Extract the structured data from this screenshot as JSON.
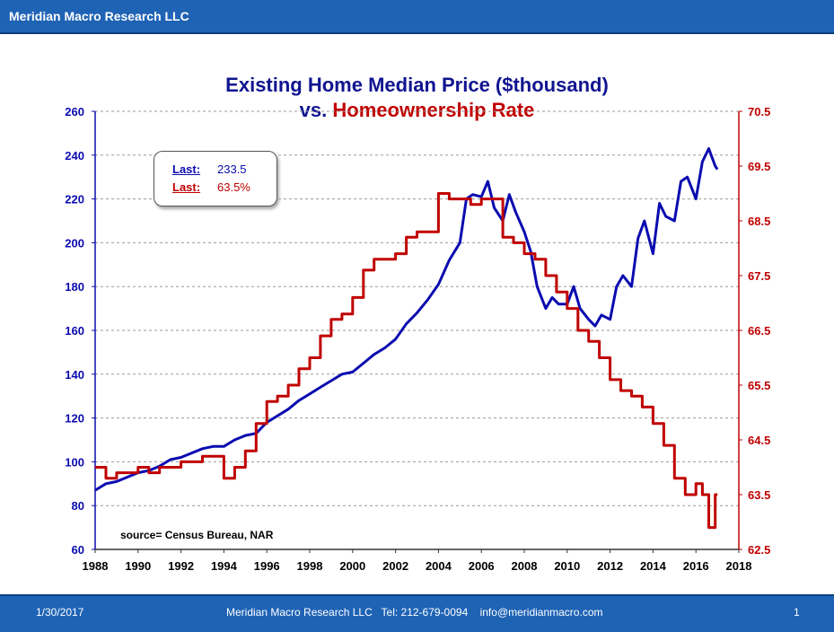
{
  "header": {
    "title": "Meridian Macro Research LLC"
  },
  "footer": {
    "date": "1/30/2017",
    "contact": "Meridian Macro Research LLC   Tel: 212-679-0094    info@meridianmacro.com",
    "page": "1"
  },
  "legend_box": {
    "row1": {
      "label": "Last:",
      "value": "233.5"
    },
    "row2": {
      "label": "Last:",
      "value": "63.5%"
    }
  },
  "source_note": "source= Census Bureau, NAR",
  "colors": {
    "price": "#0b0bb0",
    "rate": "#c00000",
    "brand": "#1f63b5"
  },
  "chart_data": {
    "type": "line",
    "title": "Existing Home Median Price ($thousand)",
    "subtitle_prefix": "vs.",
    "subtitle_series": "Homeownership Rate",
    "x_ticks": [
      "1988",
      "1990",
      "1992",
      "1994",
      "1996",
      "1998",
      "2000",
      "2002",
      "2004",
      "2006",
      "2008",
      "2010",
      "2012",
      "2014",
      "2016",
      "2018"
    ],
    "xlim": [
      1988,
      2018
    ],
    "y_left": {
      "lim": [
        60,
        260
      ],
      "ticks": [
        "60",
        "80",
        "100",
        "120",
        "140",
        "160",
        "180",
        "200",
        "220",
        "240",
        "260"
      ]
    },
    "y_right": {
      "lim": [
        62.5,
        70.5
      ],
      "ticks": [
        "62.5",
        "63.5",
        "64.5",
        "65.5",
        "66.5",
        "67.5",
        "68.5",
        "69.5",
        "70.5"
      ]
    },
    "grid": "horizontal-dashed",
    "series": [
      {
        "axis": "left",
        "x": [
          1988,
          1988.5,
          1989,
          1989.5,
          1990,
          1990.5,
          1991,
          1991.5,
          1992,
          1992.5,
          1993,
          1993.5,
          1994,
          1994.5,
          1995,
          1995.5,
          1996,
          1996.5,
          1997,
          1997.5,
          1998,
          1998.5,
          1999,
          1999.5,
          2000,
          2000.5,
          2001,
          2001.5,
          2002,
          2002.5,
          2003,
          2003.5,
          2004,
          2004.5,
          2005,
          2005.3,
          2005.6,
          2006,
          2006.3,
          2006.6,
          2007,
          2007.3,
          2007.6,
          2008,
          2008.3,
          2008.6,
          2009,
          2009.3,
          2009.6,
          2010,
          2010.3,
          2010.6,
          2011,
          2011.3,
          2011.6,
          2012,
          2012.3,
          2012.6,
          2013,
          2013.3,
          2013.6,
          2014,
          2014.3,
          2014.6,
          2015,
          2015.3,
          2015.6,
          2016,
          2016.3,
          2016.6,
          2016.9,
          2017
        ],
        "y": [
          87,
          90,
          91,
          93,
          95,
          96,
          98,
          101,
          102,
          104,
          106,
          107,
          107,
          110,
          112,
          113,
          118,
          121,
          124,
          128,
          131,
          134,
          137,
          140,
          141,
          145,
          149,
          152,
          156,
          163,
          168,
          174,
          181,
          192,
          200,
          220,
          222,
          221,
          228,
          216,
          210,
          222,
          214,
          205,
          196,
          180,
          170,
          175,
          172,
          172,
          180,
          170,
          165,
          162,
          167,
          165,
          180,
          185,
          180,
          202,
          210,
          195,
          218,
          212,
          210,
          228,
          230,
          220,
          237,
          243,
          235,
          233.5
        ]
      },
      {
        "axis": "right",
        "x": [
          1988,
          1988.5,
          1989,
          1989.5,
          1990,
          1990.5,
          1991,
          1991.5,
          1992,
          1992.5,
          1993,
          1993.5,
          1994,
          1994.5,
          1995,
          1995.5,
          1996,
          1996.5,
          1997,
          1997.5,
          1998,
          1998.5,
          1999,
          1999.5,
          2000,
          2000.5,
          2001,
          2001.5,
          2002,
          2002.5,
          2003,
          2003.5,
          2004,
          2004.5,
          2005,
          2005.5,
          2006,
          2006.5,
          2007,
          2007.5,
          2008,
          2008.5,
          2009,
          2009.5,
          2010,
          2010.5,
          2011,
          2011.5,
          2012,
          2012.5,
          2013,
          2013.5,
          2014,
          2014.5,
          2015,
          2015.5,
          2016,
          2016.3,
          2016.6,
          2016.9,
          2017
        ],
        "y": [
          64.0,
          63.8,
          63.9,
          63.9,
          64.0,
          63.9,
          64.0,
          64.0,
          64.1,
          64.1,
          64.2,
          64.2,
          63.8,
          64.0,
          64.3,
          64.8,
          65.2,
          65.3,
          65.5,
          65.8,
          66.0,
          66.4,
          66.7,
          66.8,
          67.1,
          67.6,
          67.8,
          67.8,
          67.9,
          68.2,
          68.3,
          68.3,
          69.0,
          68.9,
          68.9,
          68.8,
          68.9,
          68.9,
          68.2,
          68.1,
          67.9,
          67.8,
          67.5,
          67.2,
          66.9,
          66.5,
          66.3,
          66.0,
          65.6,
          65.4,
          65.3,
          65.1,
          64.8,
          64.4,
          63.8,
          63.5,
          63.7,
          63.5,
          62.9,
          63.5,
          63.5
        ]
      }
    ]
  }
}
